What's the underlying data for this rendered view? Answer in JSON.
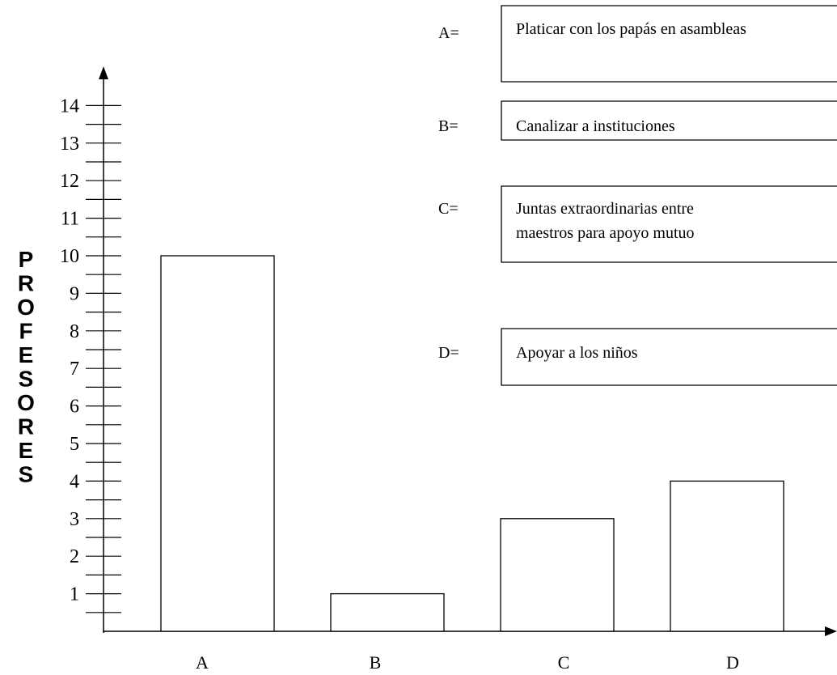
{
  "chart_data": {
    "type": "bar",
    "ylabel": "PROFESORES",
    "categories": [
      "A",
      "B",
      "C",
      "D"
    ],
    "values": [
      10,
      1,
      3,
      4
    ],
    "ylim": [
      0,
      14
    ],
    "yticks": [
      1,
      2,
      3,
      4,
      5,
      6,
      7,
      8,
      9,
      10,
      11,
      12,
      13,
      14
    ],
    "grid": false,
    "bar_fill": "#ffffff",
    "bar_stroke": "#000000",
    "legend": [
      {
        "key": "A=",
        "text_lines": [
          "Platicar con los papás en asambleas"
        ]
      },
      {
        "key": "B=",
        "text_lines": [
          "Canalizar a instituciones"
        ]
      },
      {
        "key": "C=",
        "text_lines": [
          "Juntas extraordinarias entre",
          "maestros para apoyo mutuo"
        ]
      },
      {
        "key": "D=",
        "text_lines": [
          "Apoyar a los niños"
        ]
      }
    ]
  }
}
